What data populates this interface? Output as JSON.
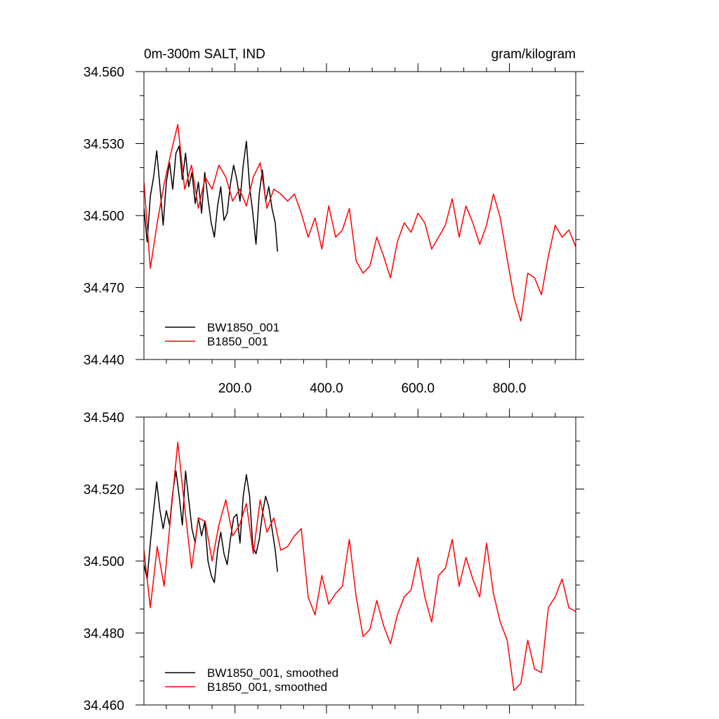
{
  "chart_data": [
    {
      "type": "line",
      "title": "0m-300m SALT, IND",
      "units": "gram/kilogram",
      "xlabel": "",
      "ylabel": "",
      "xlim": [
        1,
        945
      ],
      "ylim": [
        34.44,
        34.56
      ],
      "xticks": [
        200,
        400,
        600,
        800
      ],
      "xtick_labels": [
        "200.0",
        "400.0",
        "600.0",
        "800.0"
      ],
      "yticks": [
        34.44,
        34.47,
        34.5,
        34.53,
        34.56
      ],
      "ytick_labels": [
        "34.440",
        "34.470",
        "34.500",
        "34.530",
        "34.560"
      ],
      "grid": false,
      "legend_position": "bottom-left",
      "series": [
        {
          "name": "BW1850_001",
          "color": "#000000",
          "x": [
            1,
            8,
            15,
            22,
            29,
            36,
            43,
            50,
            57,
            64,
            71,
            78,
            85,
            92,
            99,
            106,
            113,
            120,
            127,
            134,
            141,
            148,
            155,
            162,
            169,
            176,
            183,
            190,
            197,
            204,
            211,
            218,
            225,
            232,
            239,
            246,
            253,
            260,
            267,
            274,
            281,
            288,
            293
          ],
          "values": [
            34.503,
            34.489,
            34.508,
            34.516,
            34.527,
            34.512,
            34.496,
            34.514,
            34.522,
            34.511,
            34.526,
            34.529,
            34.515,
            34.526,
            34.512,
            34.518,
            34.505,
            34.514,
            34.501,
            34.518,
            34.507,
            34.497,
            34.491,
            34.504,
            34.512,
            34.498,
            34.501,
            34.513,
            34.521,
            34.515,
            34.506,
            34.521,
            34.531,
            34.512,
            34.501,
            34.488,
            34.509,
            34.519,
            34.506,
            34.512,
            34.503,
            34.497,
            34.485
          ]
        },
        {
          "name": "B1850_001",
          "color": "#ff0000",
          "x": [
            1,
            15,
            30,
            45,
            60,
            75,
            90,
            105,
            120,
            135,
            150,
            165,
            180,
            195,
            210,
            225,
            240,
            255,
            270,
            285,
            300,
            315,
            330,
            345,
            360,
            375,
            390,
            405,
            420,
            435,
            450,
            465,
            480,
            495,
            510,
            525,
            540,
            555,
            570,
            585,
            600,
            615,
            630,
            645,
            660,
            675,
            690,
            705,
            720,
            735,
            750,
            765,
            780,
            795,
            810,
            825,
            840,
            855,
            870,
            885,
            900,
            915,
            930,
            945
          ],
          "values": [
            34.514,
            34.478,
            34.497,
            34.513,
            34.526,
            34.538,
            34.511,
            34.521,
            34.503,
            34.516,
            34.511,
            34.521,
            34.516,
            34.506,
            34.511,
            34.504,
            34.516,
            34.522,
            34.503,
            34.511,
            34.509,
            34.506,
            34.509,
            34.501,
            34.491,
            34.499,
            34.486,
            34.504,
            34.491,
            34.494,
            34.503,
            34.481,
            34.476,
            34.479,
            34.491,
            34.483,
            34.474,
            34.489,
            34.497,
            34.493,
            34.501,
            34.497,
            34.486,
            34.491,
            34.496,
            34.507,
            34.491,
            34.504,
            34.497,
            34.488,
            34.496,
            34.509,
            34.499,
            34.482,
            34.466,
            34.456,
            34.476,
            34.474,
            34.467,
            34.483,
            34.496,
            34.491,
            34.494,
            34.487
          ]
        }
      ]
    },
    {
      "type": "line",
      "title": "",
      "xlim": [
        1,
        945
      ],
      "ylim": [
        34.46,
        34.54
      ],
      "yticks": [
        34.46,
        34.48,
        34.5,
        34.52,
        34.54
      ],
      "ytick_labels": [
        "34.460",
        "34.480",
        "34.500",
        "34.520",
        "34.540"
      ],
      "grid": false,
      "legend_position": "bottom-left",
      "series": [
        {
          "name": "BW1850_001, smoothed",
          "color": "#000000",
          "x": [
            1,
            8,
            15,
            22,
            29,
            36,
            43,
            50,
            57,
            64,
            71,
            78,
            85,
            92,
            99,
            106,
            113,
            120,
            127,
            134,
            141,
            148,
            155,
            162,
            169,
            176,
            183,
            190,
            197,
            204,
            211,
            218,
            225,
            232,
            239,
            246,
            253,
            260,
            267,
            274,
            281,
            288,
            293
          ],
          "values": [
            34.499,
            34.495,
            34.505,
            34.514,
            34.522,
            34.514,
            34.509,
            34.514,
            34.51,
            34.519,
            34.525,
            34.518,
            34.51,
            34.525,
            34.517,
            34.509,
            34.505,
            34.512,
            34.507,
            34.511,
            34.5,
            34.496,
            34.494,
            34.503,
            34.508,
            34.502,
            34.499,
            34.506,
            34.512,
            34.513,
            34.505,
            34.518,
            34.524,
            34.518,
            34.504,
            34.502,
            34.506,
            34.513,
            34.518,
            34.515,
            34.509,
            34.503,
            34.497
          ]
        },
        {
          "name": "B1850_001, smoothed",
          "color": "#ff0000",
          "x": [
            1,
            15,
            30,
            45,
            60,
            75,
            90,
            105,
            120,
            135,
            150,
            165,
            180,
            195,
            210,
            225,
            240,
            255,
            270,
            285,
            300,
            315,
            330,
            345,
            360,
            375,
            390,
            405,
            420,
            435,
            450,
            465,
            480,
            495,
            510,
            525,
            540,
            555,
            570,
            585,
            600,
            615,
            630,
            645,
            660,
            675,
            690,
            705,
            720,
            735,
            750,
            765,
            780,
            795,
            810,
            825,
            840,
            855,
            870,
            885,
            900,
            915,
            930,
            945
          ],
          "values": [
            34.503,
            34.487,
            34.504,
            34.493,
            34.513,
            34.533,
            34.515,
            34.498,
            34.512,
            34.511,
            34.5,
            34.51,
            34.517,
            34.507,
            34.51,
            34.516,
            34.502,
            34.517,
            34.508,
            34.512,
            34.503,
            34.504,
            34.507,
            34.509,
            34.49,
            34.485,
            34.496,
            34.488,
            34.491,
            34.493,
            34.506,
            34.49,
            34.479,
            34.481,
            34.489,
            34.482,
            34.477,
            34.485,
            34.49,
            34.492,
            34.501,
            34.49,
            34.483,
            34.496,
            34.498,
            34.506,
            34.493,
            34.501,
            34.495,
            34.49,
            34.505,
            34.491,
            34.483,
            34.478,
            34.464,
            34.466,
            34.478,
            34.47,
            34.469,
            34.487,
            34.49,
            34.495,
            34.487,
            34.486
          ]
        }
      ]
    }
  ]
}
